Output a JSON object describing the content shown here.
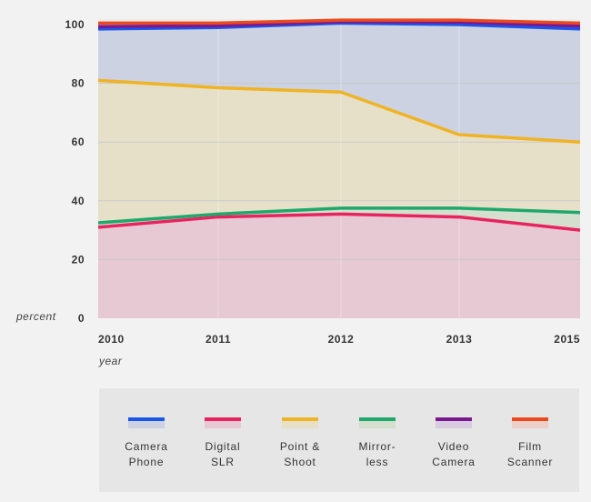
{
  "chart_data": {
    "type": "area",
    "stacked": true,
    "title": "",
    "ylabel": "percent",
    "xlabel": "year",
    "ylim": [
      0,
      100
    ],
    "yticks": [
      0,
      20,
      40,
      60,
      80,
      100
    ],
    "x": [
      2010,
      2011,
      2012,
      2013,
      2015
    ],
    "x_tick_labels": [
      "2010",
      "2011",
      "2012",
      "2013",
      "2015"
    ],
    "grid": true,
    "series": [
      {
        "name": "Digital SLR",
        "label": "Digital\nSLR",
        "color": "#e8235f",
        "fill": "#e6c9d2",
        "values": [
          31,
          34.5,
          35.5,
          34.5,
          30
        ]
      },
      {
        "name": "Mirrorless",
        "label": "Mirror-\nless",
        "color": "#1fa86b",
        "fill": "#d4dfce",
        "values": [
          32.5,
          35.5,
          37.5,
          37.5,
          36
        ]
      },
      {
        "name": "Point & Shoot",
        "label": "Point &\nShoot",
        "color": "#efb324",
        "fill": "#e6e0c9",
        "values": [
          81,
          78.5,
          77,
          62.5,
          60
        ]
      },
      {
        "name": "Camera Phone",
        "label": "Camera\nPhone",
        "color": "#1a56e8",
        "fill": "#ccd2e2",
        "values": [
          98.5,
          99,
          100.5,
          100,
          98.5
        ]
      },
      {
        "name": "Video Camera",
        "label": "Video\nCamera",
        "color": "#7a1890",
        "fill": "#d9cbe0",
        "values": [
          99.3,
          99.6,
          101,
          100.8,
          99.5
        ]
      },
      {
        "name": "Film Scanner",
        "label": "Film\nScanner",
        "color": "#ec4a1c",
        "fill": "#eccfc9",
        "values": [
          100.5,
          100.5,
          101.5,
          101.5,
          100.5
        ]
      }
    ],
    "legend": {
      "position": "bottom",
      "order": [
        "Camera Phone",
        "Digital SLR",
        "Point & Shoot",
        "Mirrorless",
        "Video Camera",
        "Film Scanner"
      ]
    }
  }
}
